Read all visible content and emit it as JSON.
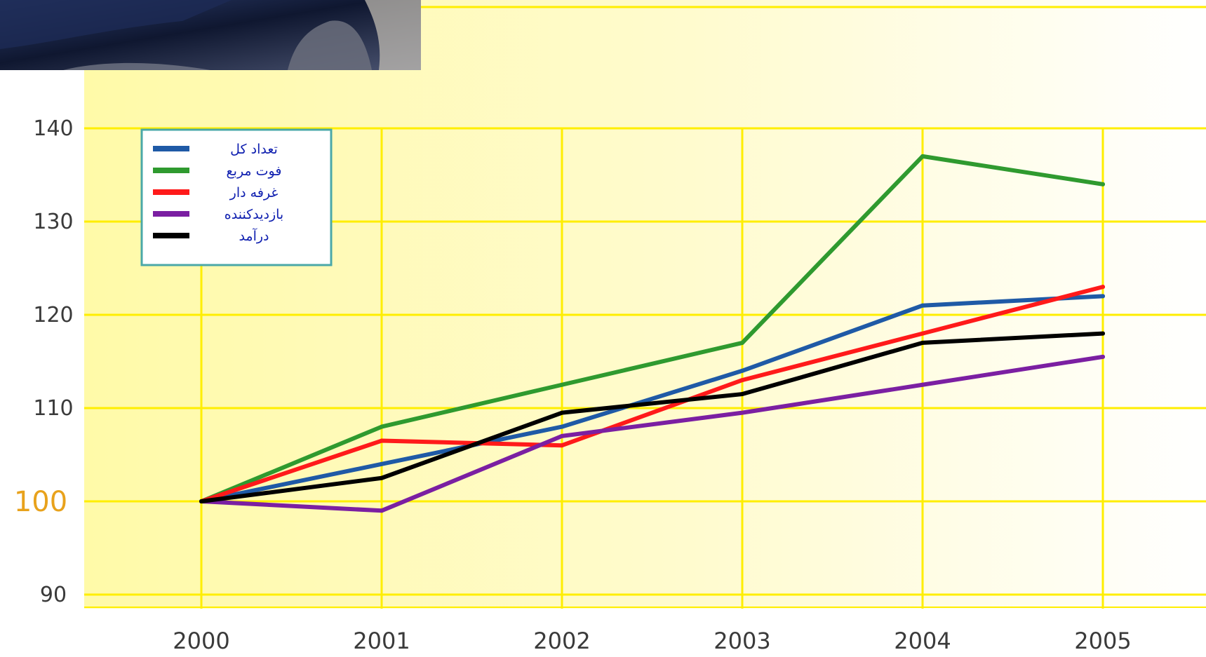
{
  "chart_data": {
    "type": "line",
    "title": "",
    "xlabel": "",
    "ylabel": "",
    "x": [
      "2000",
      "2001",
      "2002",
      "2003",
      "2004",
      "2005"
    ],
    "ylim": [
      90,
      145
    ],
    "yticks": [
      "90",
      "100",
      "110",
      "120",
      "130",
      "140"
    ],
    "highlight_tick": "100",
    "grid": true,
    "legend_position": "top-left",
    "series": [
      {
        "name": "تعداد کل",
        "color": "#1f5aa6",
        "values": [
          100,
          104,
          108,
          114,
          121,
          122
        ]
      },
      {
        "name": "فوت مربع",
        "color": "#2f9a2f",
        "values": [
          100,
          108,
          112.5,
          117,
          137,
          134
        ]
      },
      {
        "name": "غرفه دار",
        "color": "#ff1a1a",
        "values": [
          100,
          106.5,
          106,
          113,
          118,
          123
        ]
      },
      {
        "name": "بازدیدکننده",
        "color": "#7b1fa2",
        "values": [
          100,
          99,
          107,
          109.5,
          112.5,
          115.5
        ]
      },
      {
        "name": "درآمد",
        "color": "#000000",
        "values": [
          100,
          102.5,
          109.5,
          111.5,
          117,
          118
        ]
      }
    ]
  },
  "colors": {
    "plot_background": "#fffaa8",
    "grid": "#ffee00",
    "highlight_tick": "#e8a21c"
  }
}
